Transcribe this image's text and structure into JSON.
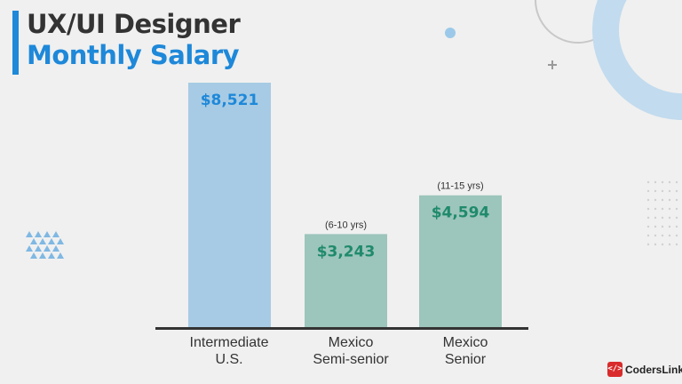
{
  "title_line1": "UX/UI Designer",
  "title_line2": "Monthly Salary",
  "brand": {
    "badge": "</>",
    "name": "CodersLink"
  },
  "colors": {
    "accent": "#1e88d9",
    "title": "#333333",
    "us_bar": "#a7cbe4",
    "mexico_bar": "#9cc5bb",
    "green_value": "#1f8a6c",
    "axis": "#333333"
  },
  "chart_data": {
    "type": "bar",
    "title": "UX/UI Designer Monthly Salary",
    "xlabel": "",
    "ylabel": "",
    "ylim": [
      0,
      9000
    ],
    "grid": false,
    "categories": [
      {
        "line1": "Intermediate",
        "line2": "U.S."
      },
      {
        "line1": "Mexico",
        "line2": "Semi-senior"
      },
      {
        "line1": "Mexico",
        "line2": "Senior"
      }
    ],
    "values": [
      8521,
      3243,
      4594
    ],
    "value_labels": [
      "$8,521",
      "$3,243",
      "$4,594"
    ],
    "annotations": [
      "",
      "(6-10 yrs)",
      "(11-15 yrs)"
    ],
    "bar_colors": [
      "#a7cbe4",
      "#9cc5bb",
      "#9cc5bb"
    ],
    "label_colors": [
      "#1e88d9",
      "#1f8a6c",
      "#1f8a6c"
    ]
  }
}
